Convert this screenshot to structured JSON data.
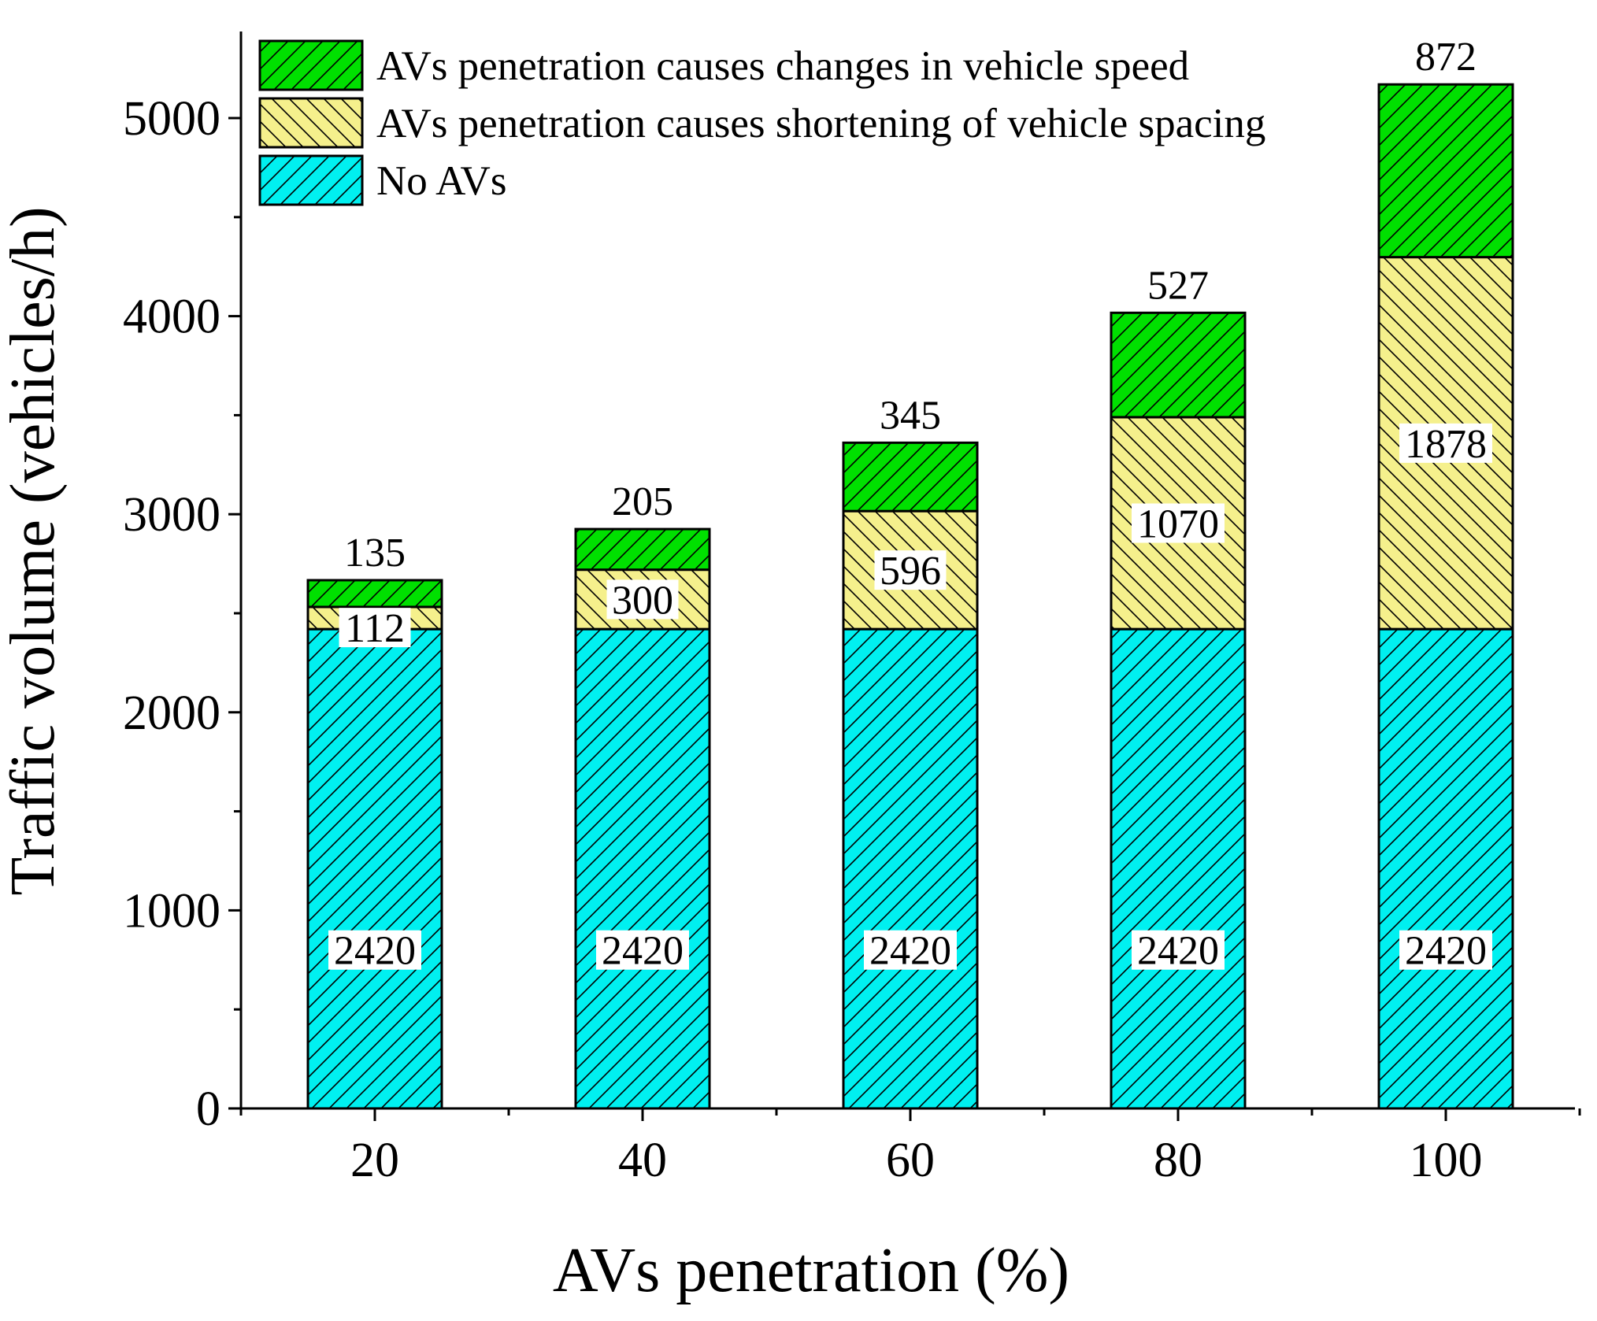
{
  "colors": {
    "no_avs": "#00F0F0",
    "spacing": "#F5F08C",
    "speed": "#00E000",
    "edge": "#000000",
    "label_bg": "#FFFFFF"
  },
  "chart_data": {
    "type": "bar",
    "stacked": true,
    "title": "",
    "xlabel": "AVs penetration (%)",
    "ylabel": "Traffic volume (vehicles/h)",
    "categories": [
      "20",
      "40",
      "60",
      "80",
      "100"
    ],
    "ylim": [
      0,
      5500
    ],
    "yticks": [
      "0",
      "1000",
      "2000",
      "3000",
      "4000",
      "5000"
    ],
    "legend_position": "top-left",
    "series": [
      {
        "name": "No AVs",
        "key": "no_avs",
        "values": [
          2420,
          2420,
          2420,
          2420,
          2420
        ],
        "hatch": "forward"
      },
      {
        "name": "AVs penetration causes shortening of vehicle spacing",
        "key": "spacing",
        "values": [
          112,
          300,
          596,
          1070,
          1878
        ],
        "hatch": "backward"
      },
      {
        "name": "AVs penetration causes changes in vehicle speed",
        "key": "speed",
        "values": [
          135,
          205,
          345,
          527,
          872
        ],
        "hatch": "forward"
      }
    ],
    "legend_order": [
      "speed",
      "spacing",
      "no_avs"
    ]
  }
}
